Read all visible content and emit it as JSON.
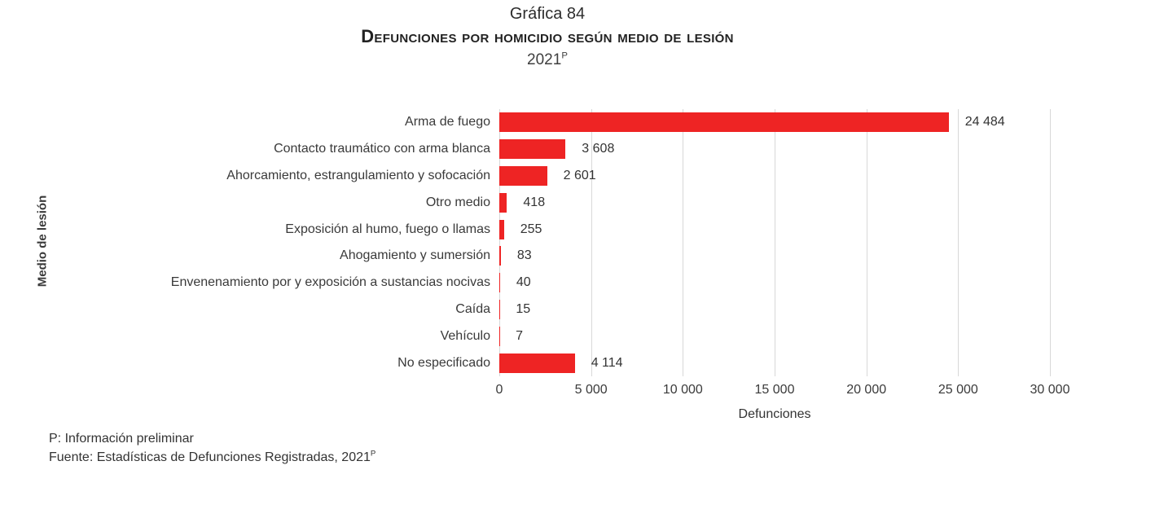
{
  "title": {
    "line1": "Gráfica 84",
    "line2": "Defunciones por homicidio según medio de lesión",
    "year": "2021",
    "year_sup": "P"
  },
  "chart_data": {
    "type": "bar",
    "orientation": "horizontal",
    "title": "Defunciones por homicidio según medio de lesión, 2021 (preliminar)",
    "categories": [
      "Arma de fuego",
      "Contacto traumático con arma blanca",
      "Ahorcamiento, estrangulamiento y sofocación",
      "Otro medio",
      "Exposición al humo, fuego o llamas",
      "Ahogamiento y sumersión",
      "Envenenamiento por y exposición a sustancias nocivas",
      "Caída",
      "Vehículo",
      "No especificado"
    ],
    "values": [
      24484,
      3608,
      2601,
      418,
      255,
      83,
      40,
      15,
      7,
      4114
    ],
    "value_labels": [
      "24 484",
      "3 608",
      "2 601",
      "418",
      "255",
      "83",
      "40",
      "15",
      "7",
      "4 114"
    ],
    "xlabel": "Defunciones",
    "ylabel": "Medio de lesión",
    "xlim": [
      0,
      30000
    ],
    "xticks": [
      0,
      5000,
      10000,
      15000,
      20000,
      25000,
      30000
    ],
    "xtick_labels": [
      "0",
      "5 000",
      "10 000",
      "15 000",
      "20 000",
      "25 000",
      "30 000"
    ],
    "grid": true,
    "legend": false,
    "bar_color": "#EE2424",
    "gridline_color": "#D8D8D8"
  },
  "footnotes": {
    "preliminary": "P: Información preliminar",
    "source_prefix": "Fuente: Estadísticas de Defunciones Registradas, 2021",
    "source_sup": "P"
  }
}
